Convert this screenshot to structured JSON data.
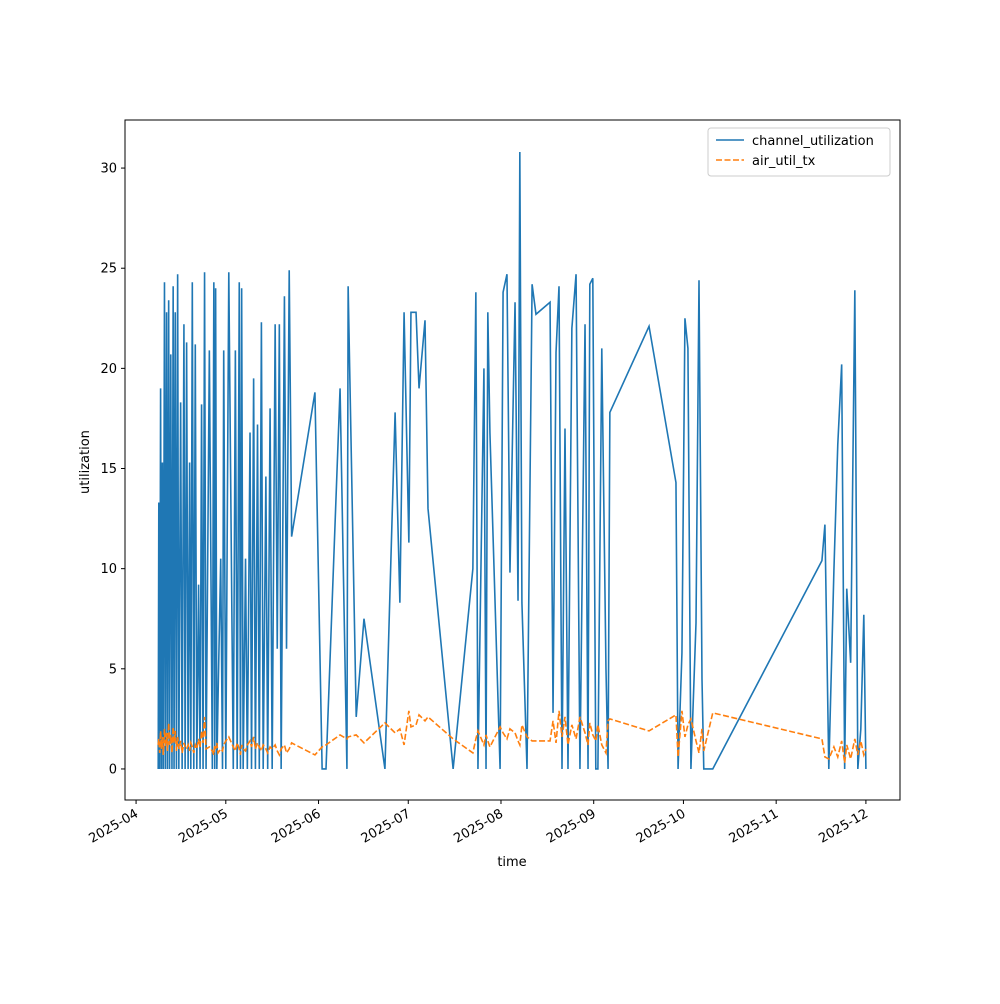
{
  "chart_data": {
    "type": "line",
    "xlabel": "time",
    "ylabel": "utilization",
    "xlim": [
      20175.3,
      20434.4
    ],
    "xticks": [
      {
        "value": 20179,
        "label": "2025-04"
      },
      {
        "value": 20209,
        "label": "2025-05"
      },
      {
        "value": 20240,
        "label": "2025-06"
      },
      {
        "value": 20270,
        "label": "2025-07"
      },
      {
        "value": 20301,
        "label": "2025-08"
      },
      {
        "value": 20332,
        "label": "2025-09"
      },
      {
        "value": 20362,
        "label": "2025-10"
      },
      {
        "value": 20393,
        "label": "2025-11"
      },
      {
        "value": 20423,
        "label": "2025-12"
      }
    ],
    "ylim": [
      -1.55,
      32.4
    ],
    "yticks": [
      0,
      5,
      10,
      15,
      20,
      25,
      30
    ],
    "legend": "upper right",
    "x": [
      20186.4,
      20186.6,
      20186.9,
      20187.2,
      20187.5,
      20187.8,
      20188.1,
      20188.5,
      20188.8,
      20189.2,
      20189.5,
      20189.9,
      20190.2,
      20190.6,
      20191.0,
      20191.4,
      20191.7,
      20192.1,
      20192.5,
      20192.9,
      20193.3,
      20193.9,
      20194.4,
      20195.0,
      20195.4,
      20195.9,
      20196.4,
      20196.9,
      20197.3,
      20197.8,
      20198.3,
      20198.8,
      20199.3,
      20199.9,
      20200.4,
      20200.9,
      20201.4,
      20201.9,
      20202.4,
      20203.5,
      20204.5,
      20205.0,
      20205.3,
      20205.6,
      20206.0,
      20206.4,
      20207.3,
      20207.9,
      20208.3,
      20209.0,
      20210.0,
      20211.5,
      20212.2,
      20212.8,
      20213.5,
      20213.9,
      20214.3,
      20214.8,
      20215.6,
      20216.2,
      20217.1,
      20217.6,
      20218.3,
      20218.9,
      20219.6,
      20220.2,
      20220.9,
      20221.5,
      20222.4,
      20223.0,
      20223.8,
      20224.5,
      20225.5,
      20226.2,
      20226.9,
      20227.5,
      20228.6,
      20229.3,
      20230.2,
      20231.0,
      20238.8,
      20241.2,
      20242.5,
      20247.2,
      20249.5,
      20249.9,
      20252.6,
      20255.2,
      20262.2,
      20265.6,
      20267.2,
      20268.6,
      20270.2,
      20270.9,
      20272.6,
      20273.6,
      20275.6,
      20276.6,
      20285.0,
      20291.6,
      20292.6,
      20293.3,
      20295.3,
      20296.0,
      20296.6,
      20297.3,
      20300.7,
      20301.7,
      20303.0,
      20304.0,
      20305.7,
      20306.7,
      20307.3,
      20308.0,
      20309.7,
      20311.4,
      20312.7,
      20317.4,
      20318.4,
      20319.4,
      20320.4,
      20321.4,
      20322.4,
      20323.4,
      20324.7,
      20326.1,
      20327.4,
      20329.1,
      20330.1,
      20330.7,
      20331.7,
      20332.7,
      20333.4,
      20334.7,
      20336.1,
      20336.8,
      20337.4,
      20350.5,
      20359.5,
      20360.2,
      20361.5,
      20362.5,
      20363.5,
      20364.5,
      20366.2,
      20367.2,
      20368.2,
      20368.8,
      20371.8,
      20408.3,
      20409.3,
      20410.6,
      20412.3,
      20413.6,
      20414.9,
      20415.9,
      20416.6,
      20417.9,
      20419.3,
      20420.3,
      20421.3,
      20422.3,
      20423.0
    ],
    "series": [
      {
        "name": "channel_utilization",
        "color": "#1f77b4",
        "linestyle": "solid",
        "values": [
          0,
          13.3,
          0,
          19,
          0,
          15.3,
          0,
          24.3,
          0,
          22.8,
          0,
          23.4,
          0,
          20.7,
          0,
          24.1,
          0,
          22.8,
          0,
          24.7,
          0,
          18.3,
          0,
          22.2,
          0,
          21.3,
          0,
          15.3,
          0,
          24.3,
          0,
          21.2,
          0,
          9.2,
          0,
          18.2,
          0,
          24.8,
          0,
          20.9,
          0,
          24.3,
          0,
          24.0,
          0,
          3.5,
          10.5,
          0,
          20.9,
          0,
          24.8,
          0,
          20.9,
          0,
          24.3,
          0,
          24.0,
          0,
          10.5,
          0,
          16.8,
          0,
          19.5,
          0,
          17.2,
          0,
          22.3,
          0,
          14.6,
          0,
          18.0,
          0,
          22.2,
          6.0,
          22.2,
          0,
          23.6,
          6.0,
          24.9,
          11.6,
          18.8,
          0,
          0,
          19,
          0,
          24.1,
          2.6,
          7.5,
          0,
          17.8,
          8.3,
          22.8,
          11.3,
          22.8,
          22.8,
          19,
          22.4,
          13,
          0,
          10,
          23.8,
          0,
          20,
          0,
          22.8,
          16.8,
          0,
          23.8,
          24.7,
          9.8,
          23.3,
          8.4,
          30.8,
          8.3,
          0,
          24.2,
          22.7,
          23.3,
          2.8,
          20.8,
          24.1,
          0,
          17,
          0,
          22,
          24.7,
          0,
          22.2,
          0,
          24.2,
          24.5,
          0,
          0,
          21,
          5,
          0,
          17.8,
          22.1,
          14.3,
          0,
          5.8,
          22.5,
          21,
          0,
          7.3,
          24.4,
          4.5,
          0,
          0,
          10.4,
          12.2,
          0,
          9.9,
          16.2,
          20.2,
          0,
          9,
          5.3,
          23.9,
          0,
          2,
          7.7,
          0
        ]
      },
      {
        "name": "air_util_tx",
        "color": "#ff7f0e",
        "linestyle": "dashed",
        "values": [
          1.2,
          1.5,
          0.8,
          1.9,
          1.0,
          1.6,
          0.7,
          2.0,
          1.1,
          1.8,
          0.9,
          2.3,
          1.2,
          1.7,
          0.8,
          2.1,
          1.3,
          1.9,
          0.9,
          1.6,
          1.0,
          1.4,
          0.8,
          1.3,
          1.1,
          1.0,
          1.2,
          0.9,
          1.3,
          1.1,
          0.8,
          1.2,
          1.0,
          1.5,
          1.1,
          1.9,
          1.3,
          2.6,
          1.0,
          1.1,
          0.9,
          0.7,
          1.2,
          1.0,
          1.3,
          0.8,
          1.0,
          0.9,
          1.2,
          1.4,
          1.6,
          1.1,
          0.9,
          1.3,
          1.0,
          0.7,
          1.2,
          1.0,
          0.9,
          1.2,
          1.4,
          1.1,
          1.6,
          1.0,
          1.3,
          1.1,
          0.9,
          1.2,
          1.0,
          0.8,
          1.1,
          1.0,
          1.2,
          0.9,
          0.7,
          1.0,
          1.2,
          0.8,
          1.0,
          1.3,
          0.7,
          1.1,
          1.2,
          1.7,
          1.5,
          1.6,
          1.7,
          1.3,
          2.3,
          1.8,
          2.0,
          1.2,
          2.9,
          2.1,
          2.2,
          2.7,
          2.4,
          2.6,
          1.5,
          0.8,
          1.5,
          1.9,
          1.2,
          1.7,
          1.4,
          1.1,
          2.1,
          1.8,
          1.5,
          2.0,
          1.8,
          1.4,
          1.2,
          2.2,
          1.6,
          1.4,
          1.4,
          1.4,
          2.4,
          1.3,
          2.9,
          1.6,
          2.6,
          1.2,
          2.2,
          1.5,
          2.6,
          1.8,
          1.2,
          2.3,
          1.7,
          1.4,
          2.2,
          1.2,
          0.8,
          2.4,
          2.5,
          1.9,
          2.7,
          0.6,
          2.9,
          1.6,
          2.2,
          2.5,
          1.4,
          0.8,
          2.0,
          0.9,
          2.8,
          1.5,
          0.6,
          0.5,
          1.1,
          0.6,
          1.4,
          0.3,
          1.2,
          0.5,
          1.5,
          0.7,
          1.4,
          0.7,
          1.0
        ]
      }
    ]
  }
}
